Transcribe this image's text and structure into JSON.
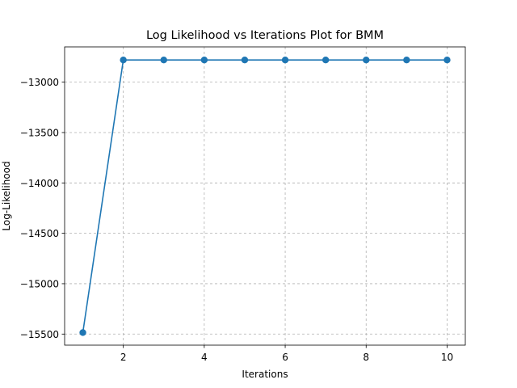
{
  "chart_data": {
    "type": "line",
    "title": "Log Likelihood vs Iterations Plot for BMM",
    "xlabel": "Iterations",
    "ylabel": "Log-Likelihood",
    "xlim": [
      0.55,
      10.45
    ],
    "ylim": [
      -15610,
      -12650
    ],
    "x_ticks": [
      2,
      4,
      6,
      8,
      10
    ],
    "y_ticks": [
      -15500,
      -15000,
      -14500,
      -14000,
      -13500,
      -13000
    ],
    "y_tick_labels": [
      "−15500",
      "−15000",
      "−14500",
      "−14000",
      "−13500",
      "−13000"
    ],
    "grid": true,
    "grid_style": "dashed",
    "marker": "circle",
    "colors": {
      "series": "#1f77b4",
      "grid": "#b0b0b0",
      "axes": "#000000"
    },
    "series": [
      {
        "x": [
          1,
          2,
          3,
          4,
          5,
          6,
          7,
          8,
          9,
          10
        ],
        "values": [
          -15485,
          -12780,
          -12780,
          -12780,
          -12780,
          -12780,
          -12780,
          -12780,
          -12780,
          -12780
        ]
      }
    ]
  }
}
